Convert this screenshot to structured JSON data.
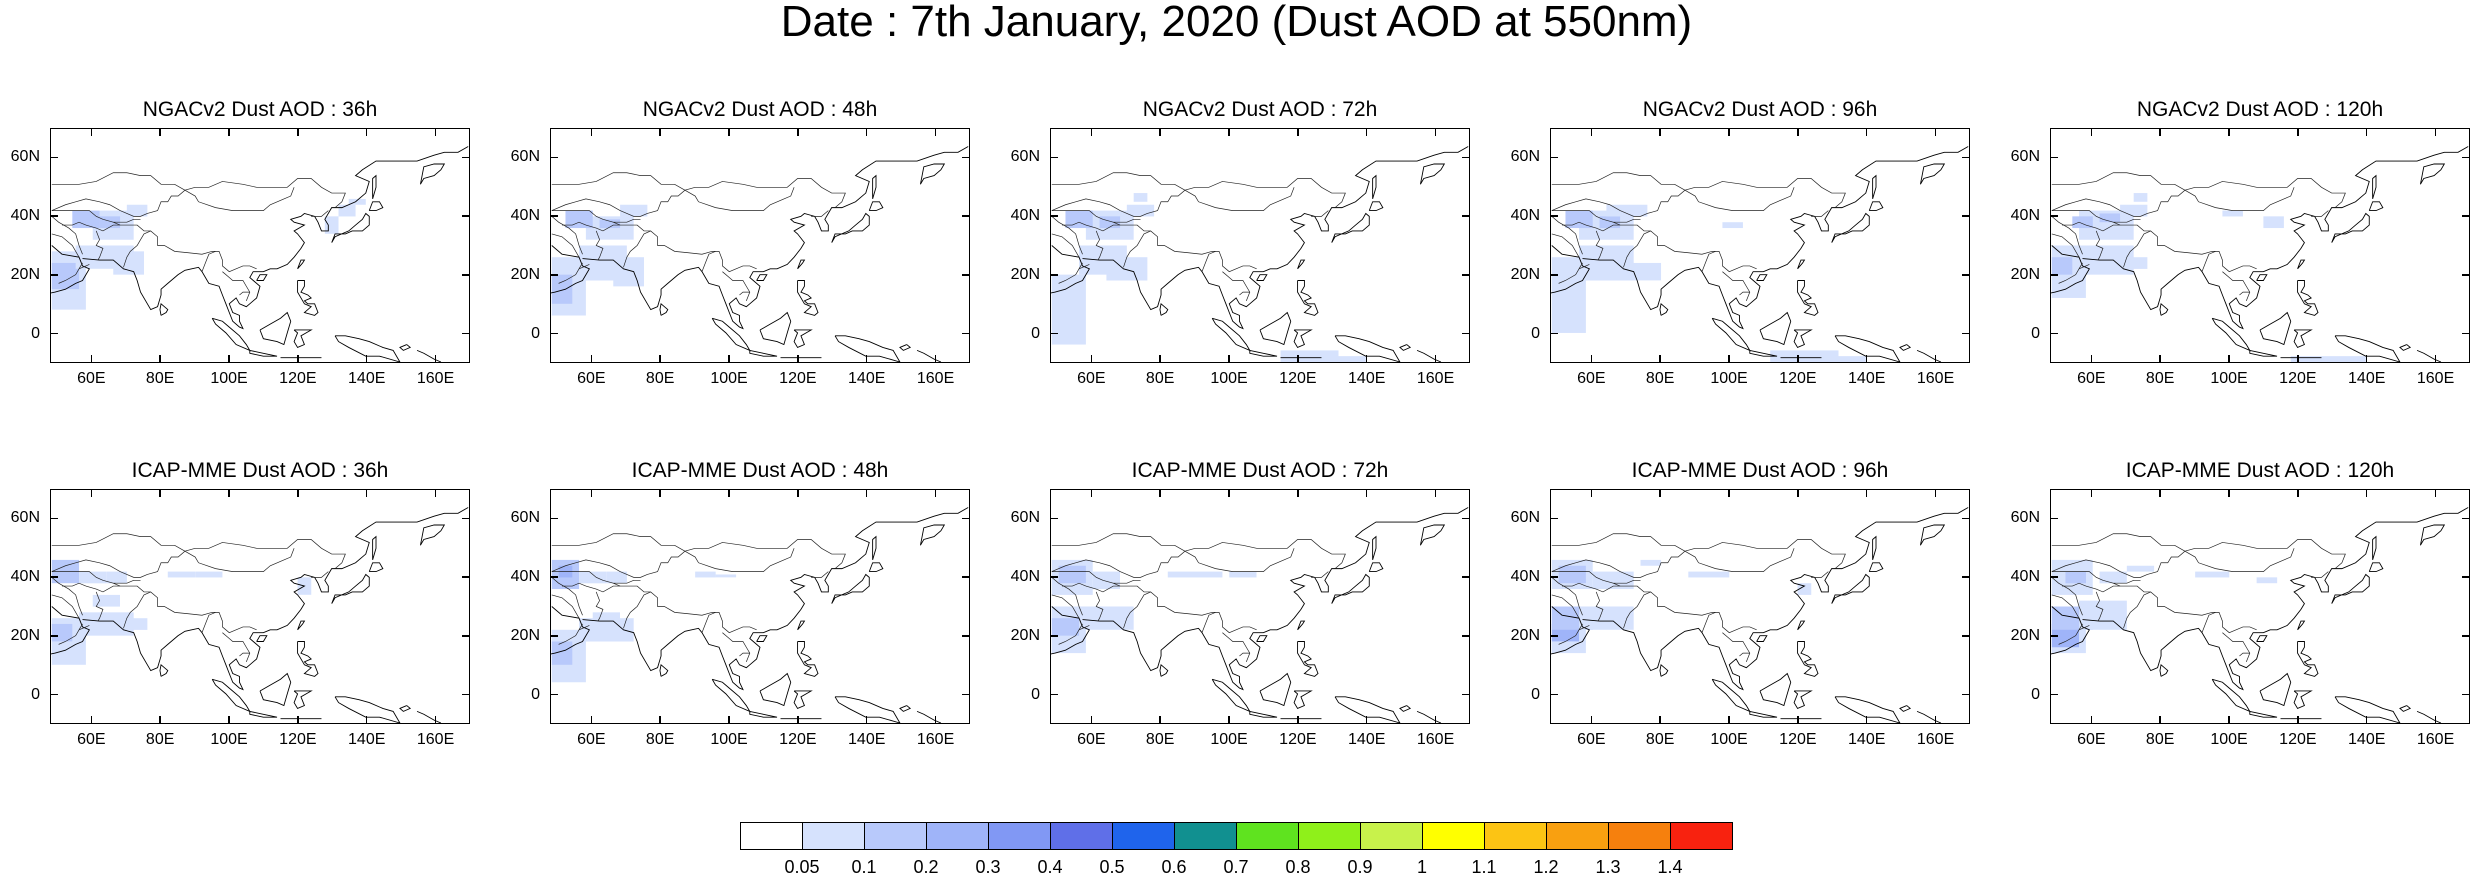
{
  "title": "Date : 7th January, 2020 (Dust AOD at 550nm)",
  "panels": [
    {
      "title": "NGACv2 Dust AOD : 36h",
      "row": 0,
      "col": 0
    },
    {
      "title": "NGACv2 Dust AOD : 48h",
      "row": 0,
      "col": 1
    },
    {
      "title": "NGACv2 Dust AOD : 72h",
      "row": 0,
      "col": 2
    },
    {
      "title": "NGACv2 Dust AOD : 96h",
      "row": 0,
      "col": 3
    },
    {
      "title": "NGACv2 Dust AOD : 120h",
      "row": 0,
      "col": 4
    },
    {
      "title": "ICAP-MME Dust AOD : 36h",
      "row": 1,
      "col": 0
    },
    {
      "title": "ICAP-MME Dust AOD : 48h",
      "row": 1,
      "col": 1
    },
    {
      "title": "ICAP-MME Dust AOD : 72h",
      "row": 1,
      "col": 2
    },
    {
      "title": "ICAP-MME Dust AOD : 96h",
      "row": 1,
      "col": 3
    },
    {
      "title": "ICAP-MME Dust AOD : 120h",
      "row": 1,
      "col": 4
    }
  ],
  "axes": {
    "lon_range": [
      48,
      170
    ],
    "lat_range": [
      -10,
      70
    ],
    "lon_ticks": [
      60,
      80,
      100,
      120,
      140,
      160
    ],
    "lon_tick_labels": [
      "60E",
      "80E",
      "100E",
      "120E",
      "140E",
      "160E"
    ],
    "lat_ticks": [
      0,
      20,
      40,
      60
    ],
    "lat_tick_labels": [
      "0",
      "20N",
      "40N",
      "60N"
    ]
  },
  "colorbar": {
    "labels": [
      "0.05",
      "0.1",
      "0.2",
      "0.3",
      "0.4",
      "0.5",
      "0.6",
      "0.7",
      "0.8",
      "0.9",
      "1",
      "1.1",
      "1.2",
      "1.3",
      "1.4"
    ],
    "colors": [
      "#ffffff",
      "#d6e2fd",
      "#b8c9fb",
      "#9fb4f9",
      "#8198f4",
      "#5f6fe8",
      "#1f64ec",
      "#119090",
      "#5fe31f",
      "#8ff01a",
      "#c8f24b",
      "#ffff00",
      "#fcc414",
      "#f9a010",
      "#f6800d",
      "#f8220f"
    ]
  }
}
